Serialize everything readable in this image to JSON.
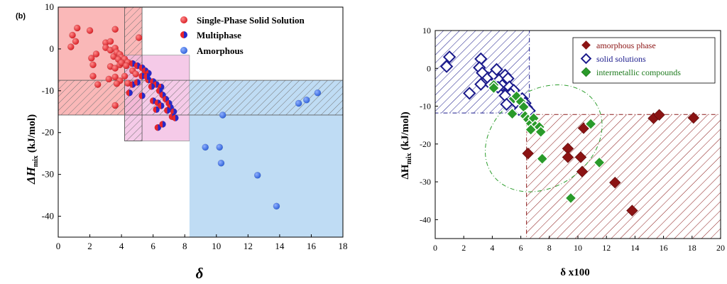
{
  "chart_data": [
    {
      "type": "scatter",
      "panel_label": "(b)",
      "xlabel": "δ",
      "ylabel_main": "ΔH",
      "ylabel_sub": "mix",
      "ylabel_unit": "(kJ/mol)",
      "xlim": [
        0,
        18
      ],
      "ylim": [
        -45,
        10
      ],
      "xticks": [
        "0",
        "2",
        "4",
        "6",
        "8",
        "10",
        "12",
        "14",
        "16",
        "18"
      ],
      "yticks": [
        "10",
        "0",
        "-10",
        "-20",
        "-30",
        "-40"
      ],
      "legend_position": "top-right",
      "regions": [
        {
          "name": "solid-solution-region",
          "x": [
            0,
            5.3
          ],
          "y": [
            -15.8,
            10
          ],
          "color": "#f8a0a0"
        },
        {
          "name": "multiphase-region",
          "x": [
            4.2,
            8.3
          ],
          "y": [
            -22,
            -1.5
          ],
          "color": "#f2b8e0"
        },
        {
          "name": "amorphous-region",
          "x": [
            8.3,
            18
          ],
          "y": [
            -45,
            -7.5
          ],
          "color": "#a9d0f0"
        },
        {
          "name": "hatched-band-vertical",
          "x": [
            4.2,
            5.3
          ],
          "y": [
            -22,
            10
          ],
          "color": "#888888"
        },
        {
          "name": "hatched-band-horizontal",
          "x": [
            0,
            18
          ],
          "y": [
            -15.8,
            -7.5
          ],
          "color": "#888888"
        }
      ],
      "series": [
        {
          "name": "Single-Phase Solid Solution",
          "color": "#e8262c",
          "points": [
            [
              1.2,
              5
            ],
            [
              0.9,
              3.3
            ],
            [
              0.8,
              0.5
            ],
            [
              1.1,
              1.8
            ],
            [
              2.0,
              4.4
            ],
            [
              3.6,
              4.7
            ],
            [
              5.1,
              2.7
            ],
            [
              3.0,
              1.5
            ],
            [
              3.3,
              1.8
            ],
            [
              2.1,
              -2.2
            ],
            [
              2.4,
              -1.2
            ],
            [
              2.2,
              -3.8
            ],
            [
              2.2,
              -6.5
            ],
            [
              3.0,
              0.3
            ],
            [
              3.3,
              -0.3
            ],
            [
              3.6,
              0.2
            ],
            [
              3.5,
              -1.8
            ],
            [
              3.7,
              -0.8
            ],
            [
              3.9,
              -1.3
            ],
            [
              4.0,
              -2.0
            ],
            [
              3.8,
              -2.5
            ],
            [
              3.3,
              -4.2
            ],
            [
              3.6,
              -4.6
            ],
            [
              3.9,
              -3.8
            ],
            [
              4.2,
              -2.4
            ],
            [
              4.4,
              -3.2
            ],
            [
              3.6,
              -6.7
            ],
            [
              3.9,
              -7.6
            ],
            [
              4.2,
              -6.5
            ],
            [
              4.4,
              -8.2
            ],
            [
              4.7,
              -5.2
            ],
            [
              4.9,
              -6.0
            ],
            [
              3.7,
              -8.3
            ],
            [
              3.6,
              -13.5
            ],
            [
              2.5,
              -8.5
            ],
            [
              3.2,
              -7.2
            ],
            [
              4.0,
              -3.3
            ],
            [
              4.3,
              -4.0
            ]
          ]
        },
        {
          "name": "Multiphase",
          "color": "#2828c8",
          "points": [
            [
              4.7,
              -3.5
            ],
            [
              5.0,
              -4.0
            ],
            [
              5.3,
              -4.5
            ],
            [
              5.5,
              -5.2
            ],
            [
              5.7,
              -5.8
            ],
            [
              5.3,
              -6.5
            ],
            [
              5.7,
              -7.4
            ],
            [
              6.0,
              -7.8
            ],
            [
              6.2,
              -8.5
            ],
            [
              6.5,
              -9.1
            ],
            [
              6.4,
              -10.0
            ],
            [
              6.6,
              -11.0
            ],
            [
              6.8,
              -12.0
            ],
            [
              7.0,
              -13.0
            ],
            [
              7.1,
              -14.0
            ],
            [
              7.3,
              -15.0
            ],
            [
              7.2,
              -16.2
            ],
            [
              7.4,
              -16.5
            ],
            [
              6.0,
              -12.4
            ],
            [
              6.3,
              -12.9
            ],
            [
              6.2,
              -14.5
            ],
            [
              6.5,
              -13.6
            ],
            [
              6.3,
              -18.8
            ],
            [
              6.6,
              -18.0
            ],
            [
              5.3,
              -11.2
            ],
            [
              4.7,
              -8.5
            ],
            [
              4.5,
              -10.5
            ],
            [
              5.0,
              -8.0
            ],
            [
              5.6,
              -6.6
            ],
            [
              5.9,
              -9.0
            ],
            [
              6.9,
              -14.7
            ]
          ]
        },
        {
          "name": "Amorphous",
          "color": "#3a6fe0",
          "points": [
            [
              10.4,
              -15.8
            ],
            [
              9.3,
              -23.5
            ],
            [
              10.2,
              -23.5
            ],
            [
              10.3,
              -27.3
            ],
            [
              12.6,
              -30.2
            ],
            [
              13.8,
              -37.6
            ],
            [
              15.2,
              -13.0
            ],
            [
              15.7,
              -12.2
            ],
            [
              16.4,
              -10.5
            ]
          ]
        }
      ]
    },
    {
      "type": "scatter",
      "xlabel": "δ x100",
      "ylabel_main": "ΔH",
      "ylabel_sub": "mix",
      "ylabel_unit": "(kJ/mol)",
      "xlim": [
        0,
        20
      ],
      "ylim": [
        -45,
        10
      ],
      "xticks": [
        "0",
        "2",
        "4",
        "6",
        "8",
        "10",
        "12",
        "14",
        "16",
        "18",
        "20"
      ],
      "yticks": [
        "10",
        "0",
        "-10",
        "-20",
        "-30",
        "-40"
      ],
      "legend_position": "top-right",
      "regions": [
        {
          "name": "solid-solution-region",
          "x": [
            0,
            6.6
          ],
          "y": [
            -11.8,
            10
          ],
          "color": "#1a1a8c"
        },
        {
          "name": "amorphous-region",
          "x": [
            6.4,
            20
          ],
          "y": [
            -45,
            -12.2
          ],
          "color": "#8b1a1a"
        },
        {
          "name": "intermetallic-ellipse",
          "cx": 7.6,
          "cy": -18.5,
          "rx": 8.8,
          "ry": 25.5,
          "angle": 35,
          "color": "#2e9e2e"
        }
      ],
      "series": [
        {
          "name": "amorphous phase",
          "color": "#8b1313",
          "points": [
            [
              6.5,
              -22.5
            ],
            [
              9.3,
              -21.2
            ],
            [
              9.3,
              -23.5
            ],
            [
              10.2,
              -23.5
            ],
            [
              10.3,
              -27.3
            ],
            [
              10.4,
              -15.8
            ],
            [
              12.6,
              -30.2
            ],
            [
              13.8,
              -37.6
            ],
            [
              15.3,
              -13.2
            ],
            [
              15.7,
              -12.3
            ],
            [
              18.1,
              -13.1
            ]
          ]
        },
        {
          "name": "solid solutions",
          "color": "#1a1a8c",
          "points": [
            [
              1.0,
              3.0
            ],
            [
              0.8,
              0.5
            ],
            [
              3.2,
              2.5
            ],
            [
              3.1,
              0.2
            ],
            [
              3.3,
              -1.2
            ],
            [
              3.2,
              -4.2
            ],
            [
              2.4,
              -6.6
            ],
            [
              3.7,
              -2.5
            ],
            [
              3.9,
              -4.3
            ],
            [
              4.1,
              -1.6
            ],
            [
              4.3,
              -0.3
            ],
            [
              4.5,
              -3.0
            ],
            [
              4.7,
              -4.5
            ],
            [
              4.9,
              -1.8
            ],
            [
              5.1,
              -2.7
            ],
            [
              5.2,
              -4.9
            ],
            [
              5.5,
              -5.8
            ],
            [
              5.3,
              -6.8
            ],
            [
              4.9,
              -7.2
            ],
            [
              5.0,
              -9.5
            ],
            [
              5.7,
              -8.5
            ],
            [
              5.8,
              -9.6
            ],
            [
              6.1,
              -8.0
            ],
            [
              6.3,
              -9.2
            ],
            [
              6.4,
              -10.3
            ],
            [
              6.6,
              -11.2
            ],
            [
              5.9,
              -11.0
            ],
            [
              4.4,
              -5.0
            ]
          ]
        },
        {
          "name": "intermetallic compounds",
          "color": "#2a9a2a",
          "points": [
            [
              4.1,
              -4.4
            ],
            [
              4.1,
              -5.2
            ],
            [
              5.5,
              -8.0
            ],
            [
              5.7,
              -7.4
            ],
            [
              6.0,
              -8.8
            ],
            [
              6.2,
              -10.2
            ],
            [
              5.4,
              -12.0
            ],
            [
              6.3,
              -12.6
            ],
            [
              6.5,
              -13.5
            ],
            [
              6.7,
              -14.6
            ],
            [
              6.9,
              -13.2
            ],
            [
              7.0,
              -15.2
            ],
            [
              6.7,
              -16.2
            ],
            [
              7.3,
              -15.5
            ],
            [
              7.4,
              -16.8
            ],
            [
              10.9,
              -14.7
            ],
            [
              11.5,
              -24.9
            ],
            [
              7.5,
              -23.9
            ],
            [
              9.5,
              -34.3
            ]
          ]
        }
      ]
    }
  ]
}
